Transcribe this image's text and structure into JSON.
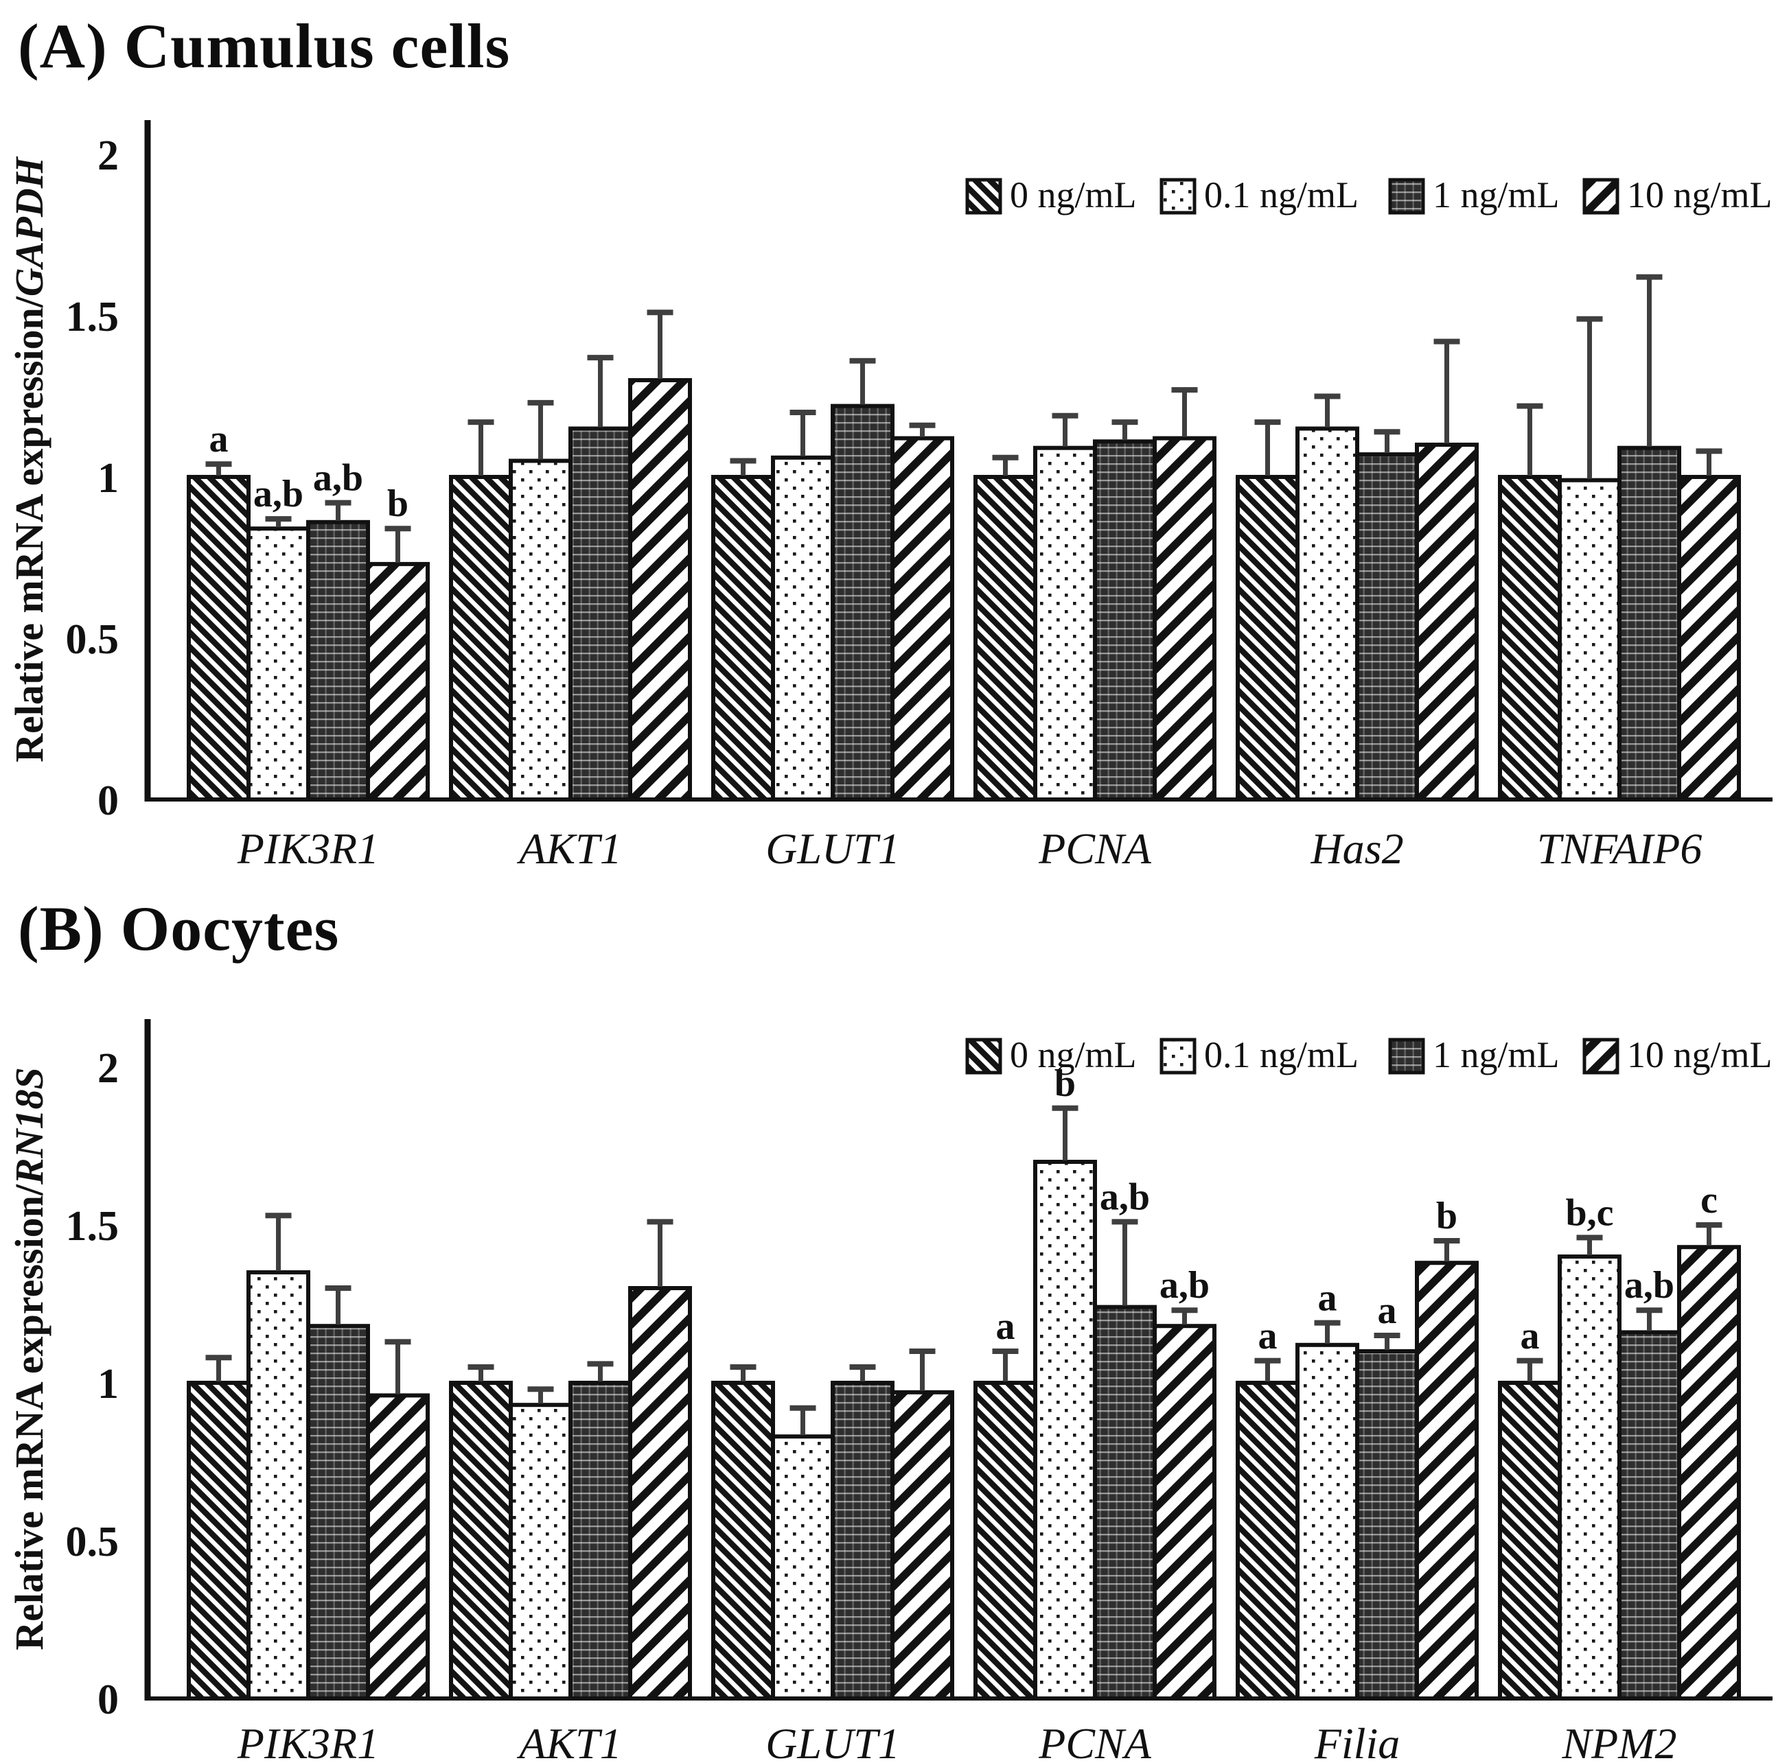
{
  "figure": {
    "background": "#ffffff",
    "ink_color": "#111111",
    "error_bar_color": "#3f3f3f"
  },
  "chart_data": [
    {
      "type": "bar",
      "panel_title": "(A) Cumulus cells",
      "ylabel_prefix": "Relative mRNA expression/",
      "ylabel_gene": "GAPDH",
      "ylim": [
        0,
        2.15
      ],
      "yticks": [
        "0",
        "0.5",
        "1",
        "1.5",
        "2"
      ],
      "grid": false,
      "legend_position": "top-right",
      "categories": [
        "PIK3R1",
        "AKT1",
        "GLUT1",
        "PCNA",
        "Has2",
        "TNFAIP6"
      ],
      "series": [
        {
          "name": "0 ng/mL",
          "pattern": "diagonal-thin-backslash",
          "values": [
            1.0,
            1.0,
            1.0,
            1.0,
            1.0,
            1.0
          ],
          "errors": [
            0.04,
            0.17,
            0.05,
            0.06,
            0.17,
            0.22
          ]
        },
        {
          "name": "0.1 ng/mL",
          "pattern": "dots",
          "values": [
            0.84,
            1.05,
            1.06,
            1.09,
            1.15,
            0.99
          ],
          "errors": [
            0.03,
            0.18,
            0.14,
            0.1,
            0.1,
            0.5
          ]
        },
        {
          "name": "1 ng/mL",
          "pattern": "dark-crosshatch",
          "values": [
            0.86,
            1.15,
            1.22,
            1.11,
            1.07,
            1.09
          ],
          "errors": [
            0.06,
            0.22,
            0.14,
            0.06,
            0.07,
            0.53
          ]
        },
        {
          "name": "10 ng/mL",
          "pattern": "diagonal-wide-slash",
          "values": [
            0.73,
            1.3,
            1.12,
            1.12,
            1.1,
            1.0
          ],
          "errors": [
            0.11,
            0.21,
            0.04,
            0.15,
            0.32,
            0.08
          ]
        }
      ],
      "annotations": [
        {
          "group": 0,
          "bar": 0,
          "text": "a"
        },
        {
          "group": 0,
          "bar": 1,
          "text": "a,b"
        },
        {
          "group": 0,
          "bar": 2,
          "text": "a,b"
        },
        {
          "group": 0,
          "bar": 3,
          "text": "b"
        }
      ]
    },
    {
      "type": "bar",
      "panel_title": "(B) Oocytes",
      "ylabel_prefix": "Relative mRNA expression/",
      "ylabel_gene": "RN18S",
      "ylim": [
        0,
        2.15
      ],
      "yticks": [
        "0",
        "0.5",
        "1",
        "1.5",
        "2"
      ],
      "grid": false,
      "legend_position": "top-right",
      "categories": [
        "PIK3R1",
        "AKT1",
        "GLUT1",
        "PCNA",
        "Filia",
        "NPM2"
      ],
      "series": [
        {
          "name": "0 ng/mL",
          "pattern": "diagonal-thin-backslash",
          "values": [
            1.0,
            1.0,
            1.0,
            1.0,
            1.0,
            1.0
          ],
          "errors": [
            0.08,
            0.05,
            0.05,
            0.1,
            0.07,
            0.07
          ]
        },
        {
          "name": "0.1 ng/mL",
          "pattern": "dots",
          "values": [
            1.35,
            0.93,
            0.83,
            1.7,
            1.12,
            1.4
          ],
          "errors": [
            0.18,
            0.05,
            0.09,
            0.17,
            0.07,
            0.06
          ]
        },
        {
          "name": "1 ng/mL",
          "pattern": "dark-crosshatch",
          "values": [
            1.18,
            1.0,
            1.0,
            1.24,
            1.1,
            1.16
          ],
          "errors": [
            0.12,
            0.06,
            0.05,
            0.27,
            0.05,
            0.07
          ]
        },
        {
          "name": "10 ng/mL",
          "pattern": "diagonal-wide-slash",
          "values": [
            0.96,
            1.3,
            0.97,
            1.18,
            1.38,
            1.43
          ],
          "errors": [
            0.17,
            0.21,
            0.13,
            0.05,
            0.07,
            0.07
          ]
        }
      ],
      "annotations": [
        {
          "group": 3,
          "bar": 0,
          "text": "a"
        },
        {
          "group": 3,
          "bar": 1,
          "text": "b"
        },
        {
          "group": 3,
          "bar": 2,
          "text": "a,b"
        },
        {
          "group": 3,
          "bar": 3,
          "text": "a,b"
        },
        {
          "group": 4,
          "bar": 0,
          "text": "a"
        },
        {
          "group": 4,
          "bar": 1,
          "text": "a"
        },
        {
          "group": 4,
          "bar": 2,
          "text": "a"
        },
        {
          "group": 4,
          "bar": 3,
          "text": "b"
        },
        {
          "group": 5,
          "bar": 0,
          "text": "a"
        },
        {
          "group": 5,
          "bar": 1,
          "text": "b,c"
        },
        {
          "group": 5,
          "bar": 2,
          "text": "a,b"
        },
        {
          "group": 5,
          "bar": 3,
          "text": "c"
        }
      ]
    }
  ]
}
